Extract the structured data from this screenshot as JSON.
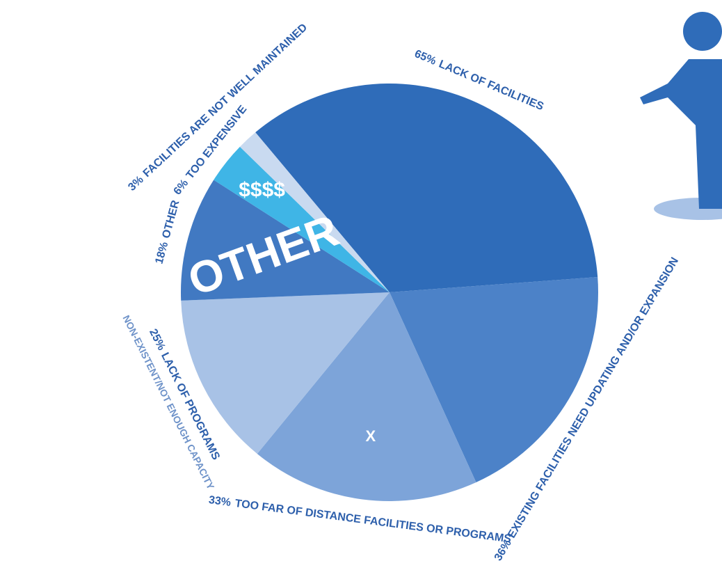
{
  "chart_data": {
    "type": "pie",
    "categories": [
      "LACK OF FACILITIES",
      "EXISTING FACILITIES NEED UPDATING AND/OR EXPANSION",
      "TOO FAR OF DISTANCE FACILITIES OR PROGRAMS",
      "LACK OF PROGRAMS",
      "OTHER",
      "TOO EXPENSIVE",
      "FACILITIES ARE NOT WELL MAINTAINED"
    ],
    "values": [
      65,
      36,
      33,
      25,
      18,
      6,
      3
    ],
    "value_labels": [
      "65%",
      "36%",
      "33%",
      "25%",
      "18%",
      "6%",
      "3%"
    ],
    "colors": [
      "#2f6cb9",
      "#4c82c8",
      "#7da4d9",
      "#a8c2e6",
      "#4179c2",
      "#3fb5e6",
      "#c9daf0"
    ],
    "sublabel": "NON-EXISTENT/NOT ENOUGH CAPACITY",
    "annotations": [
      "OTHER",
      "$$$$",
      "X"
    ]
  }
}
